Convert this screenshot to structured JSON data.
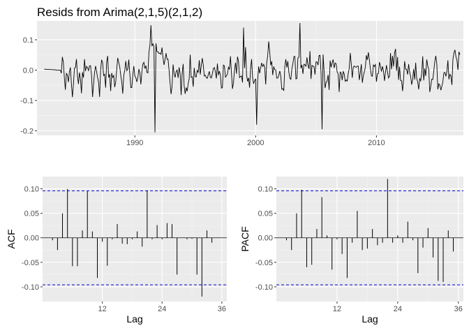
{
  "title": "Resids from Arima(2,1,5)(2,1,2)",
  "colors": {
    "panel": "#ebebeb",
    "grid_major": "#ffffff",
    "grid_minor": "#f5f5f5",
    "line": "#000000",
    "ci": "#0000cc"
  },
  "chart_data": [
    {
      "type": "line",
      "title": "Resids from Arima(2,1,5)(2,1,2)",
      "xlabel": "",
      "ylabel": "",
      "xlim": [
        1981.9,
        2017.2
      ],
      "ylim": [
        -0.215,
        0.162
      ],
      "x_ticks": [
        1990,
        2000,
        2010
      ],
      "x_tick_labels": [
        "1990",
        "2000",
        "2010"
      ],
      "y_ticks": [
        -0.2,
        -0.1,
        0.0,
        0.1
      ],
      "y_tick_labels": [
        "-0.2",
        "-0.1",
        "0.0",
        "0.1"
      ],
      "x_start": 1982.5,
      "x_step": 0.08333,
      "y_flat_count": 12,
      "y_zero_count": 5,
      "extremes": [
        {
          "x": 1991.7,
          "y": -0.205
        },
        {
          "x": 1991.3,
          "y": 0.148
        },
        {
          "x": 2000.1,
          "y": -0.18
        },
        {
          "x": 2003.7,
          "y": 0.155
        },
        {
          "x": 2005.5,
          "y": -0.195
        },
        {
          "x": 1999.0,
          "y": 0.14
        }
      ],
      "grid": true
    },
    {
      "type": "bar",
      "title": "",
      "xlabel": "Lag",
      "ylabel": "ACF",
      "xlim": [
        0,
        37
      ],
      "ylim": [
        -0.13,
        0.125
      ],
      "x_ticks": [
        12,
        24,
        36
      ],
      "x_tick_labels": [
        "12",
        "24",
        "36"
      ],
      "y_ticks": [
        -0.1,
        -0.05,
        0.0,
        0.05,
        0.1
      ],
      "y_tick_labels": [
        "-0.10",
        "-0.05",
        "0.00",
        "0.05",
        "0.10"
      ],
      "lags": [
        1,
        2,
        3,
        4,
        5,
        6,
        7,
        8,
        9,
        10,
        11,
        12,
        13,
        14,
        15,
        16,
        17,
        18,
        19,
        20,
        21,
        22,
        23,
        24,
        25,
        26,
        27,
        28,
        29,
        30,
        31,
        32,
        33,
        34,
        35,
        36
      ],
      "values": [
        0.0,
        -0.005,
        -0.025,
        0.05,
        0.1,
        -0.058,
        -0.058,
        0.015,
        0.095,
        0.013,
        -0.082,
        -0.008,
        -0.057,
        -0.003,
        0.028,
        -0.012,
        -0.013,
        -0.003,
        0.013,
        -0.018,
        0.097,
        -0.003,
        0.026,
        -0.003,
        0.03,
        0.028,
        -0.075,
        0.0,
        -0.003,
        -0.002,
        -0.075,
        -0.12,
        0.015,
        -0.01,
        0.0,
        0.0
      ],
      "ci": 0.096,
      "grid": true
    },
    {
      "type": "bar",
      "title": "",
      "xlabel": "Lag",
      "ylabel": "PACF",
      "xlim": [
        0,
        37
      ],
      "ylim": [
        -0.13,
        0.125
      ],
      "x_ticks": [
        12,
        24,
        36
      ],
      "x_tick_labels": [
        "12",
        "24",
        "36"
      ],
      "y_ticks": [
        -0.1,
        -0.05,
        0.0,
        0.05,
        0.1
      ],
      "y_tick_labels": [
        "-0.10",
        "-0.05",
        "0.00",
        "0.05",
        "0.10"
      ],
      "lags": [
        1,
        2,
        3,
        4,
        5,
        6,
        7,
        8,
        9,
        10,
        11,
        12,
        13,
        14,
        15,
        16,
        17,
        18,
        19,
        20,
        21,
        22,
        23,
        24,
        25,
        26,
        27,
        28,
        29,
        30,
        31,
        32,
        33,
        34,
        35,
        36
      ],
      "values": [
        0.0,
        -0.005,
        -0.025,
        0.05,
        0.098,
        -0.06,
        -0.055,
        0.018,
        0.083,
        0.005,
        -0.065,
        -0.003,
        -0.033,
        -0.082,
        -0.01,
        0.055,
        -0.025,
        -0.022,
        0.018,
        -0.015,
        -0.01,
        0.12,
        -0.01,
        0.005,
        -0.01,
        0.033,
        -0.005,
        -0.072,
        -0.02,
        0.02,
        -0.04,
        -0.088,
        -0.09,
        0.015,
        -0.028,
        0.0
      ],
      "ci": 0.096,
      "grid": true
    }
  ]
}
